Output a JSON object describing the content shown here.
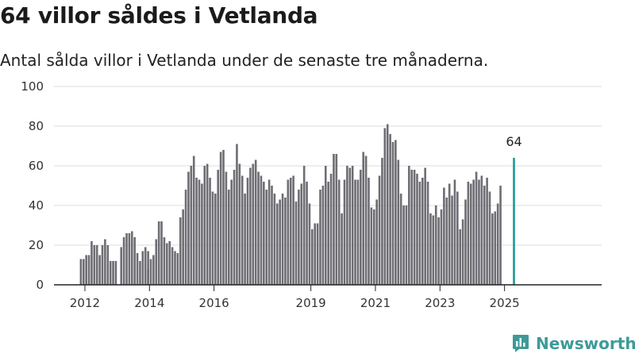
{
  "title": "64 villor såldes i Vetlanda",
  "subtitle": "Antal sålda villor i Vetlanda under de senaste tre månaderna.",
  "brand": {
    "name": "Newsworthy",
    "icon": "newsworthy-chart-logo-icon",
    "color": "#3d9a98"
  },
  "colors": {
    "bar": "#6e6d73",
    "highlight": "#1a9a96",
    "grid": "#dddddd",
    "axis": "#222222"
  },
  "chart_data": {
    "type": "bar",
    "grid": true,
    "ylim": [
      0,
      100
    ],
    "yticks": [
      0,
      20,
      40,
      60,
      80,
      100
    ],
    "xticks": [
      {
        "label": "2012",
        "year": 2012
      },
      {
        "label": "2014",
        "year": 2014
      },
      {
        "label": "2016",
        "year": 2016
      },
      {
        "label": "2019",
        "year": 2019
      },
      {
        "label": "2021",
        "year": 2021
      },
      {
        "label": "2023",
        "year": 2023
      },
      {
        "label": "2025",
        "year": 2025
      }
    ],
    "segments": [
      {
        "start": "2011-12",
        "values": [
          13,
          13,
          15,
          15,
          22,
          20,
          20,
          15,
          20,
          23,
          20,
          12,
          12,
          12
        ]
      },
      {
        "start": "2013-03",
        "values": [
          19,
          24,
          26,
          26,
          27,
          24,
          16,
          12,
          17,
          19,
          17
        ]
      },
      {
        "start": "2014-01",
        "values": [
          8,
          13,
          15,
          23,
          32,
          32,
          24,
          21,
          22,
          19,
          17,
          16
        ]
      },
      {
        "start": "2015-01",
        "values": [
          34,
          38,
          48,
          57,
          60,
          65,
          54,
          53,
          51,
          60,
          61,
          54,
          47,
          46,
          58,
          67,
          68,
          57,
          48,
          53,
          58,
          71,
          61,
          55,
          46,
          54,
          59,
          61,
          63,
          57,
          55,
          52,
          48,
          53,
          50,
          46,
          41,
          43,
          46,
          44,
          53,
          54,
          55,
          42,
          48,
          51,
          60,
          52,
          41,
          28,
          31,
          31,
          48,
          50,
          60,
          52,
          56,
          66,
          66,
          53,
          36,
          53,
          60,
          59,
          60,
          53,
          53,
          58,
          67,
          65,
          54,
          39,
          38,
          43,
          55,
          64,
          79,
          81,
          76,
          72,
          73,
          63,
          46,
          40,
          40,
          60,
          58,
          58,
          56,
          52,
          54,
          59,
          52,
          36,
          35,
          40,
          34,
          38,
          49,
          44,
          51,
          45,
          53,
          47,
          28,
          33,
          43,
          52,
          51,
          53,
          57,
          53,
          55,
          50,
          54,
          47,
          36,
          37,
          41,
          50
        ]
      },
      {
        "start": "2025-05",
        "values": [
          64
        ],
        "highlight": true
      }
    ],
    "annotations": [
      {
        "date": "2025-05",
        "value": 64,
        "label": "64"
      }
    ]
  }
}
